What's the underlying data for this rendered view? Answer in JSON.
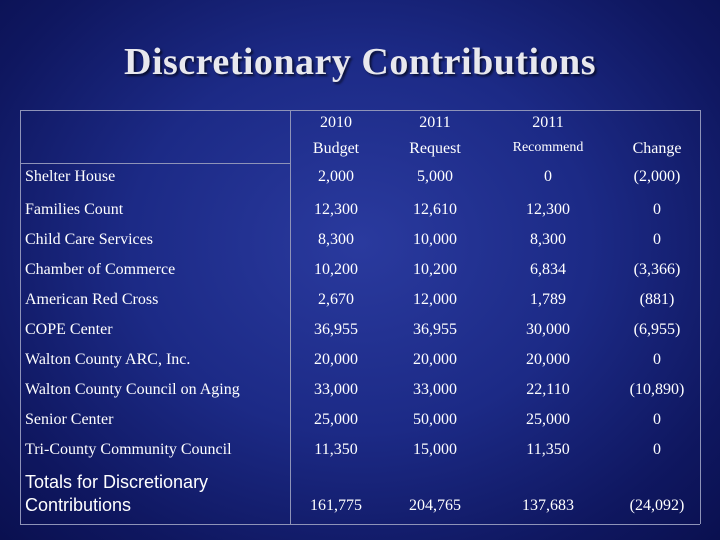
{
  "title": "Discretionary Contributions",
  "headers": [
    {
      "line1": "2010",
      "line2": "Budget"
    },
    {
      "line1": "2011",
      "line2": "Request"
    },
    {
      "line1": "2011",
      "line2": "Recommend"
    },
    {
      "line1": "",
      "line2": "Change"
    }
  ],
  "rows": [
    {
      "name": "Shelter House",
      "budget_2010": "2,000",
      "request_2011": "5,000",
      "recommend_2011": "0",
      "change": "(2,000)"
    },
    {
      "name": "Families Count",
      "budget_2010": "12,300",
      "request_2011": "12,610",
      "recommend_2011": "12,300",
      "change": "0"
    },
    {
      "name": "Child Care Services",
      "budget_2010": "8,300",
      "request_2011": "10,000",
      "recommend_2011": "8,300",
      "change": "0"
    },
    {
      "name": "Chamber of Commerce",
      "budget_2010": "10,200",
      "request_2011": "10,200",
      "recommend_2011": "6,834",
      "change": "(3,366)"
    },
    {
      "name": "American Red Cross",
      "budget_2010": "2,670",
      "request_2011": "12,000",
      "recommend_2011": "1,789",
      "change": "(881)"
    },
    {
      "name": "COPE Center",
      "budget_2010": "36,955",
      "request_2011": "36,955",
      "recommend_2011": "30,000",
      "change": "(6,955)"
    },
    {
      "name": "Walton County ARC, Inc.",
      "budget_2010": "20,000",
      "request_2011": "20,000",
      "recommend_2011": "20,000",
      "change": "0"
    },
    {
      "name": "Walton County Council on Aging",
      "budget_2010": "33,000",
      "request_2011": "33,000",
      "recommend_2011": "22,110",
      "change": "(10,890)"
    },
    {
      "name": "Senior Center",
      "budget_2010": "25,000",
      "request_2011": "50,000",
      "recommend_2011": "25,000",
      "change": "0"
    },
    {
      "name": "Tri-County Community Council",
      "budget_2010": "11,350",
      "request_2011": "15,000",
      "recommend_2011": "11,350",
      "change": "0"
    }
  ],
  "totals": {
    "label_line1": "Totals for Discretionary",
    "label_line2": "Contributions",
    "budget_2010": "161,775",
    "request_2011": "204,765",
    "recommend_2011": "137,683",
    "change": "(24,092)"
  }
}
